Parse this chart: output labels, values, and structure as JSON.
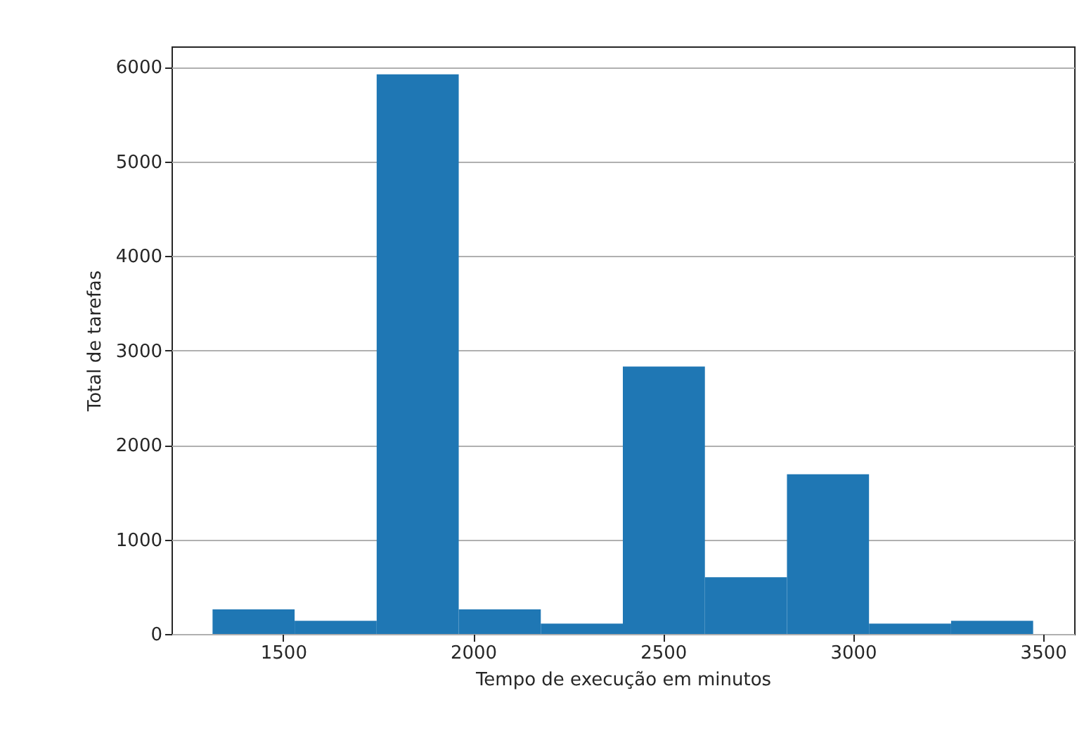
{
  "chart_data": {
    "type": "histogram",
    "xlabel": "Tempo de execução em minutos",
    "ylabel": "Total de tarefas",
    "bins": [
      1314,
      1530,
      1746,
      1962,
      2178,
      2394,
      2610,
      2826,
      3042,
      3258,
      3474
    ],
    "values": [
      260,
      140,
      5920,
      260,
      110,
      2830,
      600,
      1690,
      110,
      140
    ],
    "color": "#1f77b4",
    "xlim": [
      1206,
      3582
    ],
    "xticks": [
      1500,
      2000,
      2500,
      3000,
      3500
    ],
    "ylim": [
      0,
      6216
    ],
    "yticks": [
      0,
      1000,
      2000,
      3000,
      4000,
      5000,
      6000
    ],
    "grid": "y"
  }
}
